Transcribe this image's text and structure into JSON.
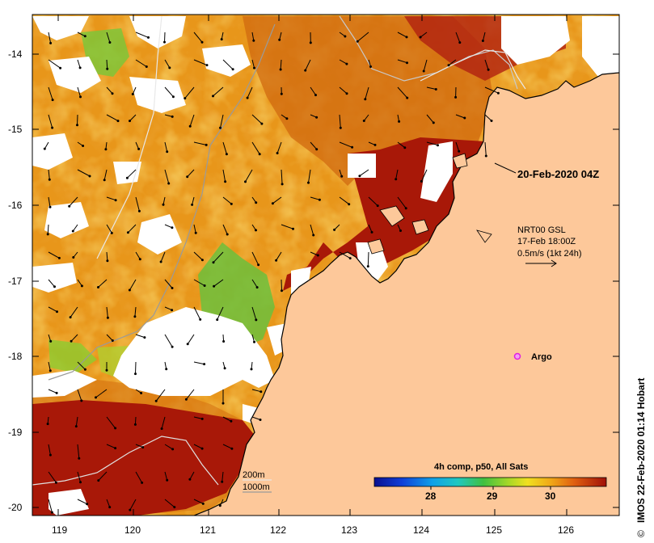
{
  "map": {
    "date_label": "20-Feb-2020 04Z",
    "current_info": {
      "line1": "NRT00 GSL",
      "line2": "17-Feb 18:00Z",
      "line3": "0.5m/s (1kt 24h)"
    },
    "argo_label": "Argo",
    "contour_legend": {
      "depth1": "200m",
      "depth2": "1000m"
    },
    "colorbar": {
      "title": "4h comp, p50, All Sats",
      "ticks": [
        "28",
        "29",
        "30"
      ]
    },
    "credit": "IMOS 22-Feb-2020 01:14 Hobart",
    "copyright_symbol": "©",
    "y_axis_ticks": [
      "-14",
      "-15",
      "-16",
      "-17",
      "-18",
      "-19",
      "-20"
    ],
    "x_axis_ticks": [
      "119",
      "120",
      "121",
      "122",
      "123",
      "124",
      "125",
      "126"
    ],
    "colors": {
      "land": "#fdc89a",
      "hot": "#a81808",
      "warm": "#e08a10",
      "mid": "#f0b020",
      "cool": "#58c038",
      "argo": "#e020e0"
    }
  }
}
